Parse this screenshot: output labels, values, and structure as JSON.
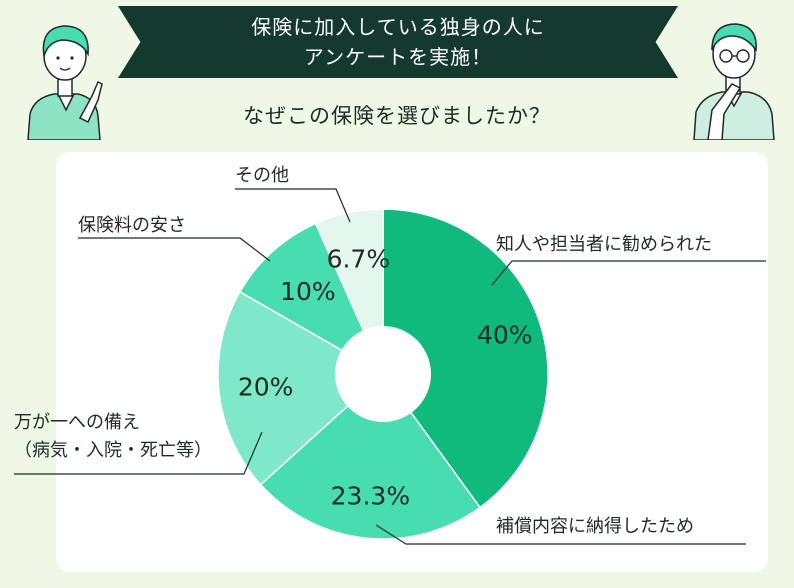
{
  "header": {
    "banner_line1": "保険に加入している独身の人に",
    "banner_line2": "アンケートを実施！",
    "question": "なぜこの保険を選びましたか？"
  },
  "colors": {
    "background": "#eef8e4",
    "banner": "#143a30",
    "slices": [
      "#0fba7c",
      "#47ddb0",
      "#7fe8c8",
      "#47ddb0",
      "#e4f7ef"
    ]
  },
  "chart_data": {
    "type": "pie",
    "donut": true,
    "categories": [
      "知人や担当者に勧められた",
      "補償内容に納得したため",
      "万が一への備え（病気・入院・死亡等）",
      "保険料の安さ",
      "その他"
    ],
    "legend_lines": [
      [
        "知人や担当者に勧められた"
      ],
      [
        "補償内容に納得したため"
      ],
      [
        "万が一への備え",
        "（病気・入院・死亡等）"
      ],
      [
        "保険料の安さ"
      ],
      [
        "その他"
      ]
    ],
    "values": [
      40,
      23.3,
      20,
      10,
      6.7
    ],
    "value_labels": [
      "40%",
      "23.3%",
      "20%",
      "10%",
      "6.7%"
    ]
  }
}
